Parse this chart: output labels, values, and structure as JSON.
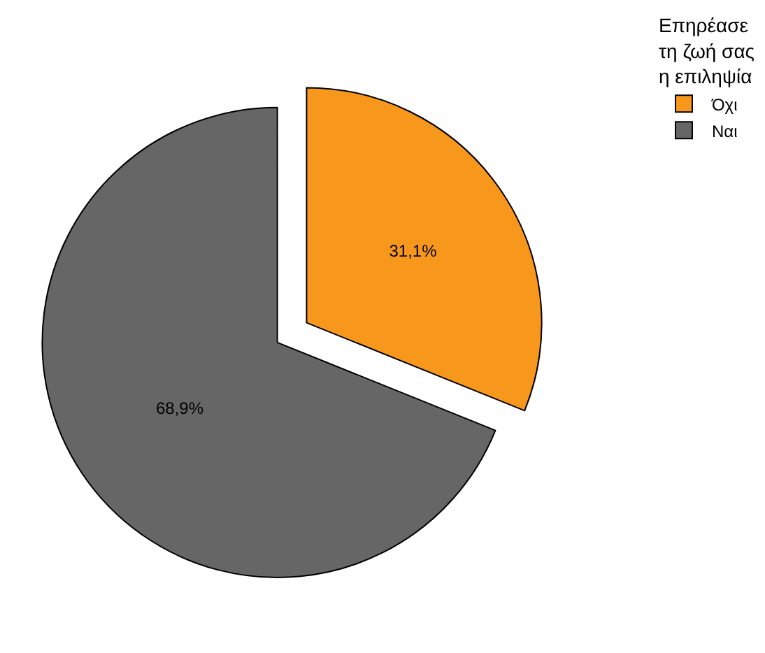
{
  "chart_data": {
    "type": "pie",
    "legend_title": "Επηρέασε\nτη ζωή σας\nη επιληψία",
    "categories": [
      "Όχι",
      "Ναι"
    ],
    "values": [
      31.1,
      68.9
    ],
    "colors": [
      "#f7981d",
      "#666666"
    ],
    "value_labels": [
      "31,1%",
      "68,9%"
    ],
    "legend": "top right"
  }
}
